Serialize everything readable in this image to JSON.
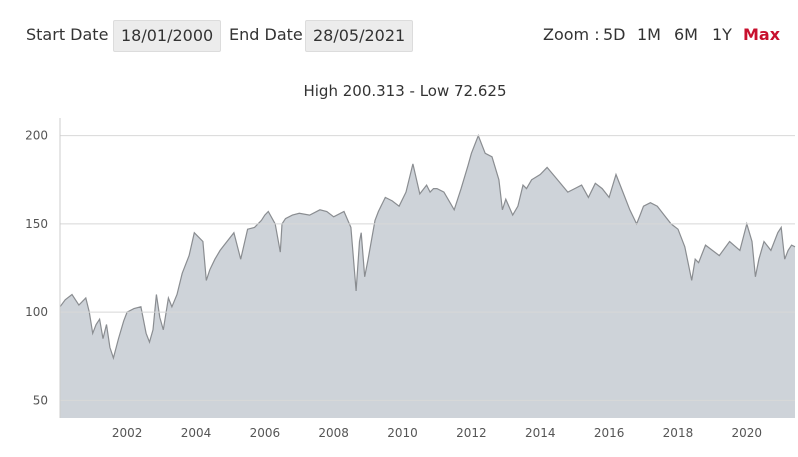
{
  "toolbar": {
    "start_label": "Start Date",
    "start_value": "18/01/2000",
    "end_label": "End Date",
    "end_value": "28/05/2021",
    "zoom_label": "Zoom :",
    "zoom_options": [
      "5D",
      "1M",
      "6M",
      "1Y",
      "Max"
    ],
    "zoom_selected": "Max"
  },
  "summary": "High 200.313 - Low 72.625",
  "colors": {
    "accent": "#c8102e",
    "area_fill": "#ced3d9",
    "line": "#8a8d91"
  },
  "chart_data": {
    "type": "area",
    "title": "High 200.313 - Low 72.625",
    "xlabel": "",
    "ylabel": "",
    "xlim": [
      2000.05,
      2021.4
    ],
    "ylim": [
      40,
      210
    ],
    "x_ticks": [
      "2002",
      "2004",
      "2006",
      "2008",
      "2010",
      "2012",
      "2014",
      "2016",
      "2018",
      "2020"
    ],
    "y_ticks": [
      50,
      100,
      150,
      200
    ],
    "grid": true,
    "legend": "none",
    "x": [
      2000.05,
      2000.2,
      2000.4,
      2000.6,
      2000.8,
      2000.9,
      2001.0,
      2001.1,
      2001.2,
      2001.3,
      2001.4,
      2001.5,
      2001.6,
      2001.75,
      2001.9,
      2002.0,
      2002.2,
      2002.4,
      2002.55,
      2002.65,
      2002.75,
      2002.85,
      2002.95,
      2003.05,
      2003.2,
      2003.3,
      2003.45,
      2003.6,
      2003.8,
      2003.95,
      2004.05,
      2004.2,
      2004.3,
      2004.4,
      2004.55,
      2004.7,
      2004.9,
      2005.1,
      2005.3,
      2005.5,
      2005.7,
      2005.9,
      2006.0,
      2006.1,
      2006.3,
      2006.45,
      2006.5,
      2006.6,
      2006.8,
      2007.0,
      2007.3,
      2007.6,
      2007.8,
      2008.0,
      2008.3,
      2008.5,
      2008.65,
      2008.75,
      2008.8,
      2008.9,
      2009.0,
      2009.2,
      2009.3,
      2009.5,
      2009.7,
      2009.9,
      2010.1,
      2010.3,
      2010.5,
      2010.7,
      2010.8,
      2010.9,
      2011.0,
      2011.2,
      2011.5,
      2011.7,
      2011.9,
      2012.0,
      2012.2,
      2012.4,
      2012.6,
      2012.8,
      2012.9,
      2013.0,
      2013.2,
      2013.35,
      2013.5,
      2013.6,
      2013.75,
      2014.0,
      2014.2,
      2014.5,
      2014.8,
      2015.0,
      2015.2,
      2015.4,
      2015.6,
      2015.8,
      2016.0,
      2016.2,
      2016.4,
      2016.6,
      2016.8,
      2016.9,
      2017.0,
      2017.2,
      2017.4,
      2017.6,
      2017.8,
      2018.0,
      2018.2,
      2018.4,
      2018.5,
      2018.6,
      2018.8,
      2019.0,
      2019.2,
      2019.5,
      2019.8,
      2020.0,
      2020.15,
      2020.25,
      2020.35,
      2020.5,
      2020.7,
      2020.9,
      2021.0,
      2021.1,
      2021.2,
      2021.3,
      2021.4
    ],
    "values": [
      103,
      107,
      110,
      104,
      108,
      100,
      88,
      93,
      96,
      85,
      93,
      80,
      74,
      85,
      95,
      100,
      102,
      103,
      88,
      83,
      90,
      110,
      97,
      90,
      108,
      103,
      110,
      122,
      132,
      145,
      143,
      140,
      118,
      124,
      130,
      135,
      140,
      145,
      130,
      147,
      148,
      152,
      155,
      157,
      150,
      134,
      150,
      153,
      155,
      156,
      155,
      158,
      157,
      154,
      157,
      148,
      112,
      140,
      145,
      120,
      130,
      152,
      157,
      165,
      163,
      160,
      168,
      184,
      167,
      172,
      168,
      170,
      170,
      168,
      158,
      170,
      183,
      190,
      200,
      190,
      188,
      175,
      158,
      164,
      155,
      160,
      172,
      170,
      175,
      178,
      182,
      175,
      168,
      170,
      172,
      165,
      173,
      170,
      165,
      178,
      168,
      158,
      150,
      155,
      160,
      162,
      160,
      155,
      150,
      147,
      137,
      118,
      130,
      128,
      138,
      135,
      132,
      140,
      135,
      150,
      140,
      120,
      130,
      140,
      135,
      145,
      148,
      130,
      135,
      138,
      137
    ]
  }
}
